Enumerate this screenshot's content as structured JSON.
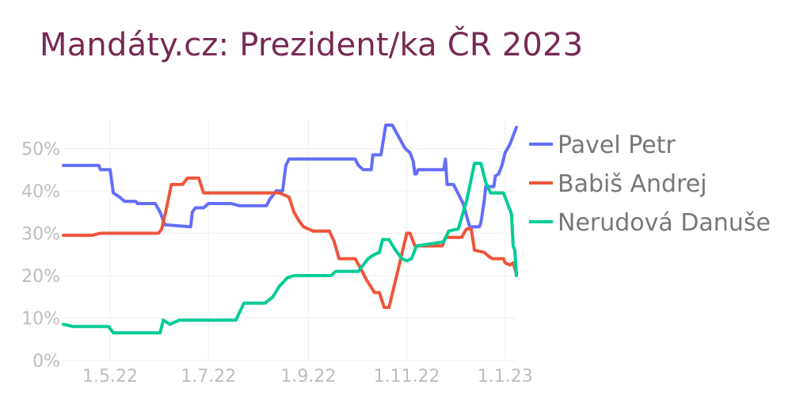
{
  "title": "Mandáty.cz: Prezident/ka ČR 2023",
  "chart_data": {
    "type": "line",
    "title": "Mandáty.cz: Prezident/ka ČR 2023",
    "xlabel": "",
    "ylabel": "",
    "x_ticks": [
      {
        "label": "1.5.22",
        "date": "2022-05-01"
      },
      {
        "label": "1.7.22",
        "date": "2022-07-01"
      },
      {
        "label": "1.9.22",
        "date": "2022-09-01"
      },
      {
        "label": "1.11.22",
        "date": "2022-11-01"
      },
      {
        "label": "1.1.23",
        "date": "2023-01-01"
      }
    ],
    "y_ticks": [
      "0%",
      "10%",
      "20%",
      "30%",
      "40%",
      "50%"
    ],
    "xlim": [
      "2022-04-02",
      "2023-01-08"
    ],
    "ylim": [
      0,
      57
    ],
    "grid": true,
    "legend_position": "right",
    "series": [
      {
        "name": "Pavel Petr",
        "color": "#636efa",
        "points": [
          [
            "2022-04-02",
            46
          ],
          [
            "2022-04-24",
            46
          ],
          [
            "2022-04-25",
            45
          ],
          [
            "2022-05-01",
            45
          ],
          [
            "2022-05-03",
            39.5
          ],
          [
            "2022-05-07",
            38.5
          ],
          [
            "2022-05-10",
            37.5
          ],
          [
            "2022-05-17",
            37.5
          ],
          [
            "2022-05-18",
            37
          ],
          [
            "2022-05-29",
            37
          ],
          [
            "2022-06-01",
            35
          ],
          [
            "2022-06-04",
            32
          ],
          [
            "2022-06-20",
            31.5
          ],
          [
            "2022-06-21",
            35
          ],
          [
            "2022-06-23",
            36
          ],
          [
            "2022-06-28",
            36
          ],
          [
            "2022-07-01",
            37
          ],
          [
            "2022-07-15",
            37
          ],
          [
            "2022-07-20",
            36.5
          ],
          [
            "2022-08-06",
            36.5
          ],
          [
            "2022-08-08",
            38
          ],
          [
            "2022-08-12",
            40
          ],
          [
            "2022-08-16",
            40
          ],
          [
            "2022-08-18",
            46
          ],
          [
            "2022-08-20",
            47.5
          ],
          [
            "2022-09-30",
            47.5
          ],
          [
            "2022-10-02",
            46
          ],
          [
            "2022-10-05",
            45
          ],
          [
            "2022-10-10",
            45
          ],
          [
            "2022-10-11",
            48.5
          ],
          [
            "2022-10-16",
            48.5
          ],
          [
            "2022-10-19",
            55.5
          ],
          [
            "2022-10-23",
            55.5
          ],
          [
            "2022-10-31",
            50
          ],
          [
            "2022-11-03",
            49
          ],
          [
            "2022-11-05",
            47
          ],
          [
            "2022-11-06",
            44
          ],
          [
            "2022-11-07",
            44
          ],
          [
            "2022-11-08",
            45
          ],
          [
            "2022-11-24",
            45
          ],
          [
            "2022-11-25",
            47.5
          ],
          [
            "2022-11-26",
            41.5
          ],
          [
            "2022-11-30",
            41.5
          ],
          [
            "2022-12-06",
            37
          ],
          [
            "2022-12-10",
            31.5
          ],
          [
            "2022-12-16",
            31.5
          ],
          [
            "2022-12-17",
            32.5
          ],
          [
            "2022-12-19",
            37.5
          ],
          [
            "2022-12-20",
            41
          ],
          [
            "2022-12-25",
            41
          ],
          [
            "2022-12-26",
            43.5
          ],
          [
            "2022-12-28",
            44
          ],
          [
            "2022-12-30",
            46
          ],
          [
            "2023-01-01",
            49
          ],
          [
            "2023-01-04",
            51
          ],
          [
            "2023-01-08",
            55
          ]
        ]
      },
      {
        "name": "Babiš Andrej",
        "color": "#ef553b",
        "points": [
          [
            "2022-04-02",
            29.5
          ],
          [
            "2022-04-20",
            29.5
          ],
          [
            "2022-04-25",
            30
          ],
          [
            "2022-05-31",
            30
          ],
          [
            "2022-06-02",
            31
          ],
          [
            "2022-06-05",
            36
          ],
          [
            "2022-06-08",
            41.5
          ],
          [
            "2022-06-15",
            41.5
          ],
          [
            "2022-06-18",
            43
          ],
          [
            "2022-06-25",
            43
          ],
          [
            "2022-06-28",
            39.5
          ],
          [
            "2022-08-14",
            39.5
          ],
          [
            "2022-08-20",
            38.5
          ],
          [
            "2022-08-23",
            35
          ],
          [
            "2022-08-26",
            33
          ],
          [
            "2022-08-29",
            31.5
          ],
          [
            "2022-09-04",
            30.5
          ],
          [
            "2022-09-14",
            30.5
          ],
          [
            "2022-09-17",
            28
          ],
          [
            "2022-09-20",
            24
          ],
          [
            "2022-09-30",
            24
          ],
          [
            "2022-10-03",
            22
          ],
          [
            "2022-10-07",
            19
          ],
          [
            "2022-10-12",
            16
          ],
          [
            "2022-10-15",
            16
          ],
          [
            "2022-10-18",
            12.5
          ],
          [
            "2022-10-21",
            12.5
          ],
          [
            "2022-10-27",
            22
          ],
          [
            "2022-11-01",
            30
          ],
          [
            "2022-11-03",
            30
          ],
          [
            "2022-11-06",
            27
          ],
          [
            "2022-11-23",
            27
          ],
          [
            "2022-11-25",
            29
          ],
          [
            "2022-12-05",
            29
          ],
          [
            "2022-12-08",
            31
          ],
          [
            "2022-12-11",
            31
          ],
          [
            "2022-12-13",
            26
          ],
          [
            "2022-12-19",
            25.5
          ],
          [
            "2022-12-22",
            24.5
          ],
          [
            "2022-12-24",
            24
          ],
          [
            "2022-12-31",
            24
          ],
          [
            "2023-01-01",
            23
          ],
          [
            "2023-01-04",
            22.5
          ],
          [
            "2023-01-06",
            23
          ],
          [
            "2023-01-08",
            20.5
          ]
        ]
      },
      {
        "name": "Nerudová Danuše",
        "color": "#00cc96",
        "points": [
          [
            "2022-04-02",
            8.5
          ],
          [
            "2022-04-08",
            8
          ],
          [
            "2022-04-30",
            8
          ],
          [
            "2022-05-03",
            6.5
          ],
          [
            "2022-06-01",
            6.5
          ],
          [
            "2022-06-03",
            9.5
          ],
          [
            "2022-06-07",
            8.5
          ],
          [
            "2022-06-13",
            9.5
          ],
          [
            "2022-07-18",
            9.5
          ],
          [
            "2022-07-23",
            13.5
          ],
          [
            "2022-08-05",
            13.5
          ],
          [
            "2022-08-10",
            15
          ],
          [
            "2022-08-14",
            17.5
          ],
          [
            "2022-08-19",
            19.5
          ],
          [
            "2022-08-23",
            20
          ],
          [
            "2022-09-15",
            20
          ],
          [
            "2022-09-18",
            21
          ],
          [
            "2022-10-02",
            21
          ],
          [
            "2022-10-05",
            22.5
          ],
          [
            "2022-10-08",
            24
          ],
          [
            "2022-10-12",
            25
          ],
          [
            "2022-10-15",
            25.5
          ],
          [
            "2022-10-17",
            28.5
          ],
          [
            "2022-10-21",
            28.5
          ],
          [
            "2022-10-25",
            26
          ],
          [
            "2022-10-29",
            24
          ],
          [
            "2022-11-01",
            23.5
          ],
          [
            "2022-11-04",
            24
          ],
          [
            "2022-11-07",
            27
          ],
          [
            "2022-11-16",
            27.5
          ],
          [
            "2022-11-24",
            28
          ],
          [
            "2022-11-27",
            30.5
          ],
          [
            "2022-12-03",
            31
          ],
          [
            "2022-12-06",
            35
          ],
          [
            "2022-12-08",
            37.5
          ],
          [
            "2022-12-10",
            41
          ],
          [
            "2022-12-13",
            46.5
          ],
          [
            "2022-12-17",
            46.5
          ],
          [
            "2022-12-20",
            42
          ],
          [
            "2022-12-23",
            39.5
          ],
          [
            "2022-12-31",
            39.5
          ],
          [
            "2023-01-02",
            37.5
          ],
          [
            "2023-01-05",
            34.5
          ],
          [
            "2023-01-06",
            27
          ],
          [
            "2023-01-07",
            26
          ],
          [
            "2023-01-08",
            20
          ]
        ]
      }
    ]
  }
}
